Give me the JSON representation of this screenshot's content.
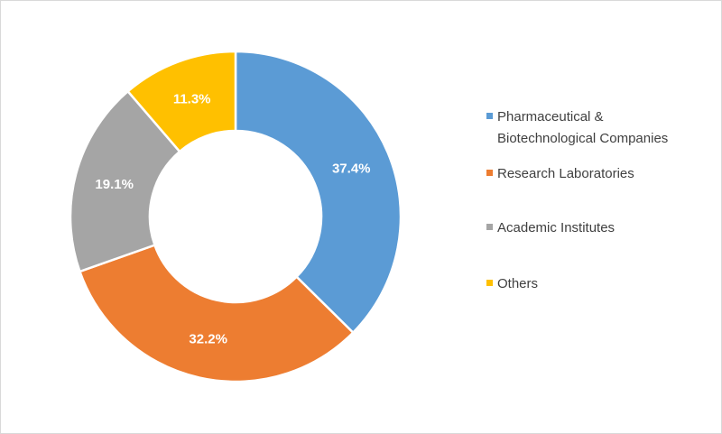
{
  "chart_data": {
    "type": "pie",
    "donut": true,
    "title": "",
    "categories": [
      "Pharmaceutical & Biotechnological Companies",
      "Research Laboratories",
      "Academic Institutes",
      "Others"
    ],
    "legend_lines": [
      [
        "Pharmaceutical &",
        "Biotechnological Companies"
      ],
      [
        "Research Laboratories"
      ],
      [
        "Academic Institutes"
      ],
      [
        "Others"
      ]
    ],
    "values": [
      37.4,
      32.2,
      19.1,
      11.3
    ],
    "labels": [
      "37.4%",
      "32.2%",
      "19.1%",
      "11.3%"
    ],
    "colors": [
      "#5B9BD5",
      "#ED7D31",
      "#A5A5A5",
      "#FFC000"
    ],
    "legend_position": "right"
  }
}
